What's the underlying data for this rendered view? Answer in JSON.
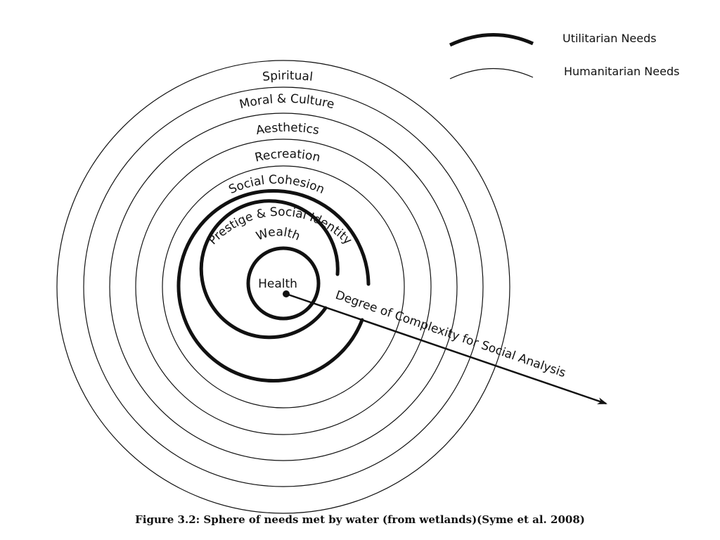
{
  "legend": {
    "utilitarian": "Utilitarian Needs",
    "humanitarian": "Humanitarian Needs"
  },
  "rings": {
    "spiritual": "Spiritual",
    "moral_culture": "Moral & Culture",
    "aesthetics": "Aesthetics",
    "recreation": "Recreation",
    "social_cohesion": "Social Cohesion",
    "prestige": "Prestige & Social Identity",
    "wealth": "Wealth",
    "health": "Health"
  },
  "axis_label": "Degree of Complexity for Social Analysis",
  "caption": "Figure 3.2: Sphere of needs met by water (from wetlands)(Syme et al. 2008)"
}
